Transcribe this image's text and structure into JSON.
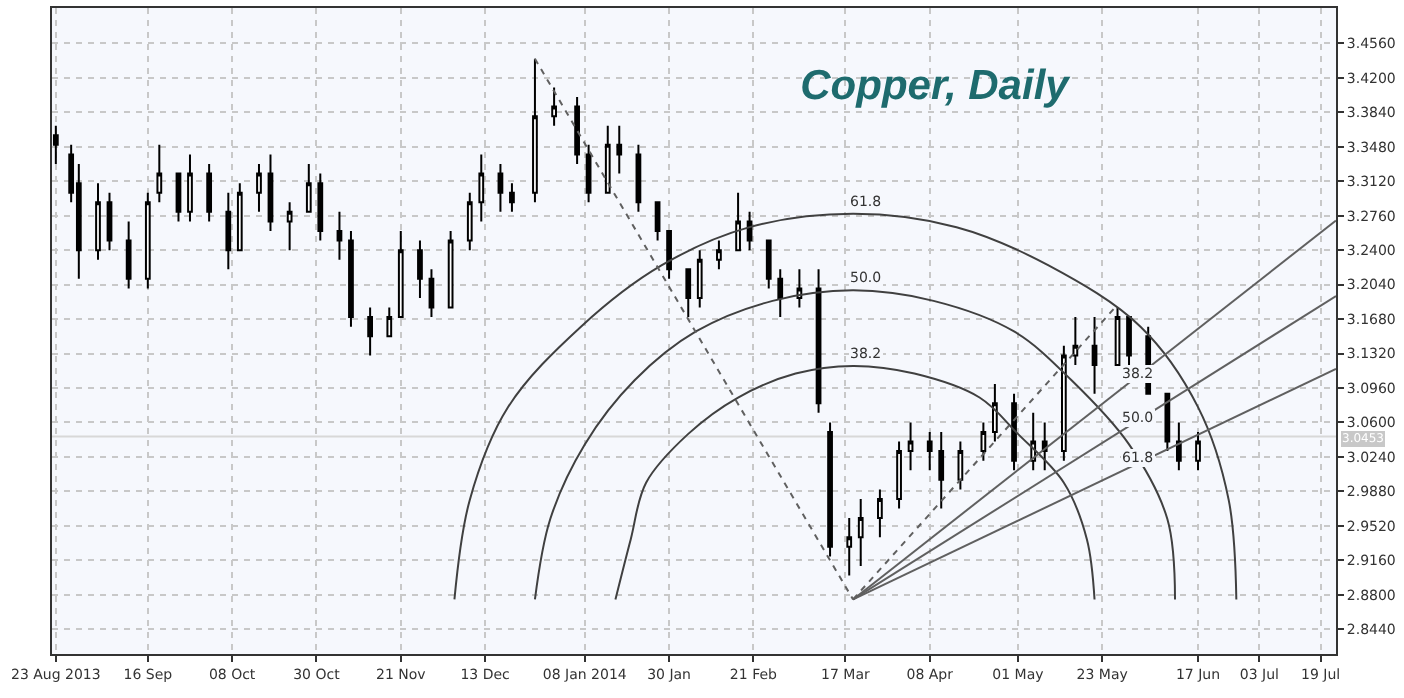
{
  "chart_data": {
    "type": "candlestick",
    "title": "Copper, Daily",
    "xlim": [
      "2013-08-22",
      "2014-07-23"
    ],
    "ylim": [
      2.818,
      3.493
    ],
    "xticks": [
      {
        "value": "2013-08-23",
        "label": "23 Aug 2013"
      },
      {
        "value": "2013-09-16",
        "label": "16 Sep"
      },
      {
        "value": "2013-10-08",
        "label": "08 Oct"
      },
      {
        "value": "2013-10-30",
        "label": "30 Oct"
      },
      {
        "value": "2013-11-21",
        "label": "21 Nov"
      },
      {
        "value": "2013-12-13",
        "label": "13 Dec"
      },
      {
        "value": "2014-01-08",
        "label": "08 Jan 2014"
      },
      {
        "value": "2014-01-30",
        "label": "30 Jan"
      },
      {
        "value": "2014-02-21",
        "label": "21 Feb"
      },
      {
        "value": "2014-03-17",
        "label": "17 Mar"
      },
      {
        "value": "2014-04-08",
        "label": "08 Apr"
      },
      {
        "value": "2014-05-01",
        "label": "01 May"
      },
      {
        "value": "2014-05-23",
        "label": "23 May"
      },
      {
        "value": "2014-06-17",
        "label": "17 Jun"
      },
      {
        "value": "2014-07-03",
        "label": "03 Jul"
      },
      {
        "value": "2014-07-19",
        "label": "19 Jul"
      }
    ],
    "yticks": [
      {
        "value": 3.456,
        "label": "3.4560"
      },
      {
        "value": 3.42,
        "label": "3.4200"
      },
      {
        "value": 3.384,
        "label": "3.3840"
      },
      {
        "value": 3.348,
        "label": "3.3480"
      },
      {
        "value": 3.312,
        "label": "3.3120"
      },
      {
        "value": 3.276,
        "label": "3.2760"
      },
      {
        "value": 3.24,
        "label": "3.2400"
      },
      {
        "value": 3.204,
        "label": "3.2040"
      },
      {
        "value": 3.168,
        "label": "3.1680"
      },
      {
        "value": 3.132,
        "label": "3.1320"
      },
      {
        "value": 3.096,
        "label": "3.0960"
      },
      {
        "value": 3.06,
        "label": "3.0600"
      },
      {
        "value": 3.024,
        "label": "3.0240"
      },
      {
        "value": 2.988,
        "label": "2.9880"
      },
      {
        "value": 2.952,
        "label": "2.9520"
      },
      {
        "value": 2.916,
        "label": "2.9160"
      },
      {
        "value": 2.88,
        "label": "2.8800"
      },
      {
        "value": 2.844,
        "label": "2.8440"
      }
    ],
    "grid": true,
    "series": [
      {
        "color": "#000000",
        "x": [
          "2013-08-23",
          "2013-08-27",
          "2013-08-29",
          "2013-09-03",
          "2013-09-06",
          "2013-09-11",
          "2013-09-16",
          "2013-09-19",
          "2013-09-24",
          "2013-09-27",
          "2013-10-02",
          "2013-10-07",
          "2013-10-10",
          "2013-10-15",
          "2013-10-18",
          "2013-10-23",
          "2013-10-28",
          "2013-10-31",
          "2013-11-05",
          "2013-11-08",
          "2013-11-13",
          "2013-11-18",
          "2013-11-21",
          "2013-11-26",
          "2013-11-29",
          "2013-12-04",
          "2013-12-09",
          "2013-12-12",
          "2013-12-17",
          "2013-12-20",
          "2013-12-26",
          "2013-12-31",
          "2014-01-06",
          "2014-01-09",
          "2014-01-14",
          "2014-01-17",
          "2014-01-22",
          "2014-01-27",
          "2014-01-30",
          "2014-02-04",
          "2014-02-07",
          "2014-02-12",
          "2014-02-17",
          "2014-02-20",
          "2014-02-25",
          "2014-02-28",
          "2014-03-05",
          "2014-03-10",
          "2014-03-13",
          "2014-03-18",
          "2014-03-21",
          "2014-03-26",
          "2014-03-31",
          "2014-04-03",
          "2014-04-08",
          "2014-04-11",
          "2014-04-16",
          "2014-04-22",
          "2014-04-25",
          "2014-04-30",
          "2014-05-05",
          "2014-05-08",
          "2014-05-13",
          "2014-05-16",
          "2014-05-21",
          "2014-05-27",
          "2014-05-30",
          "2014-06-04",
          "2014-06-09",
          "2014-06-12",
          "2014-06-17"
        ],
        "ohlc": [
          [
            3.36,
            3.37,
            3.33,
            3.35
          ],
          [
            3.34,
            3.35,
            3.29,
            3.3
          ],
          [
            3.31,
            3.33,
            3.21,
            3.24
          ],
          [
            3.24,
            3.31,
            3.23,
            3.29
          ],
          [
            3.29,
            3.3,
            3.24,
            3.25
          ],
          [
            3.25,
            3.27,
            3.2,
            3.21
          ],
          [
            3.21,
            3.3,
            3.2,
            3.29
          ],
          [
            3.3,
            3.35,
            3.29,
            3.32
          ],
          [
            3.32,
            3.32,
            3.27,
            3.28
          ],
          [
            3.28,
            3.34,
            3.27,
            3.32
          ],
          [
            3.32,
            3.33,
            3.27,
            3.28
          ],
          [
            3.28,
            3.3,
            3.22,
            3.24
          ],
          [
            3.24,
            3.31,
            3.24,
            3.3
          ],
          [
            3.3,
            3.33,
            3.28,
            3.32
          ],
          [
            3.32,
            3.34,
            3.26,
            3.27
          ],
          [
            3.27,
            3.29,
            3.24,
            3.28
          ],
          [
            3.28,
            3.33,
            3.28,
            3.31
          ],
          [
            3.31,
            3.32,
            3.25,
            3.26
          ],
          [
            3.26,
            3.28,
            3.23,
            3.25
          ],
          [
            3.25,
            3.26,
            3.16,
            3.17
          ],
          [
            3.17,
            3.18,
            3.13,
            3.15
          ],
          [
            3.15,
            3.18,
            3.15,
            3.17
          ],
          [
            3.17,
            3.26,
            3.17,
            3.24
          ],
          [
            3.24,
            3.25,
            3.19,
            3.21
          ],
          [
            3.21,
            3.22,
            3.17,
            3.18
          ],
          [
            3.18,
            3.26,
            3.18,
            3.25
          ],
          [
            3.25,
            3.3,
            3.24,
            3.29
          ],
          [
            3.29,
            3.34,
            3.27,
            3.32
          ],
          [
            3.32,
            3.33,
            3.28,
            3.3
          ],
          [
            3.3,
            3.31,
            3.28,
            3.29
          ],
          [
            3.3,
            3.44,
            3.29,
            3.38
          ],
          [
            3.38,
            3.41,
            3.37,
            3.39
          ],
          [
            3.39,
            3.4,
            3.33,
            3.34
          ],
          [
            3.34,
            3.35,
            3.29,
            3.3
          ],
          [
            3.3,
            3.37,
            3.3,
            3.35
          ],
          [
            3.35,
            3.37,
            3.32,
            3.34
          ],
          [
            3.34,
            3.35,
            3.28,
            3.29
          ],
          [
            3.29,
            3.29,
            3.25,
            3.26
          ],
          [
            3.26,
            3.26,
            3.21,
            3.22
          ],
          [
            3.22,
            3.22,
            3.17,
            3.19
          ],
          [
            3.19,
            3.24,
            3.18,
            3.23
          ],
          [
            3.23,
            3.25,
            3.22,
            3.24
          ],
          [
            3.24,
            3.3,
            3.24,
            3.27
          ],
          [
            3.27,
            3.28,
            3.24,
            3.25
          ],
          [
            3.25,
            3.25,
            3.2,
            3.21
          ],
          [
            3.21,
            3.22,
            3.17,
            3.19
          ],
          [
            3.19,
            3.22,
            3.18,
            3.2
          ],
          [
            3.2,
            3.22,
            3.07,
            3.08
          ],
          [
            3.05,
            3.06,
            2.92,
            2.93
          ],
          [
            2.93,
            2.96,
            2.9,
            2.94
          ],
          [
            2.94,
            2.98,
            2.91,
            2.96
          ],
          [
            2.96,
            2.99,
            2.94,
            2.98
          ],
          [
            2.98,
            3.04,
            2.97,
            3.03
          ],
          [
            3.03,
            3.06,
            3.01,
            3.04
          ],
          [
            3.04,
            3.05,
            3.01,
            3.03
          ],
          [
            3.03,
            3.05,
            2.97,
            3.0
          ],
          [
            3.0,
            3.04,
            2.99,
            3.03
          ],
          [
            3.03,
            3.06,
            3.02,
            3.05
          ],
          [
            3.05,
            3.1,
            3.04,
            3.08
          ],
          [
            3.08,
            3.09,
            3.01,
            3.02
          ],
          [
            3.02,
            3.07,
            3.01,
            3.04
          ],
          [
            3.04,
            3.06,
            3.01,
            3.03
          ],
          [
            3.03,
            3.14,
            3.02,
            3.13
          ],
          [
            3.13,
            3.17,
            3.12,
            3.14
          ],
          [
            3.14,
            3.17,
            3.09,
            3.12
          ],
          [
            3.12,
            3.18,
            3.12,
            3.17
          ],
          [
            3.17,
            3.17,
            3.12,
            3.13
          ],
          [
            3.15,
            3.16,
            3.09,
            3.09
          ],
          [
            3.09,
            3.09,
            3.03,
            3.04
          ],
          [
            3.04,
            3.06,
            3.01,
            3.02
          ],
          [
            3.02,
            3.05,
            3.01,
            3.04
          ]
        ]
      },
      {
        "type": "line",
        "color": "#404040",
        "x": [
          "2014-06-27",
          "2014-06-25",
          "2014-06-17",
          "2014-06-02",
          "2014-05-09",
          "2014-04-15",
          "2014-03-19",
          "2014-02-20",
          "2014-01-28",
          "2014-01-07",
          "2013-12-19",
          "2013-12-09",
          "2013-12-05"
        ],
        "values": [
          2.875,
          2.979,
          3.076,
          3.16,
          3.224,
          3.264,
          3.278,
          3.264,
          3.224,
          3.16,
          3.076,
          2.979,
          2.875
        ]
      },
      {
        "type": "line",
        "color": "#404040",
        "x": [
          "2014-06-11",
          "2014-06-09",
          "2014-05-30",
          "2014-05-15",
          "2014-04-30",
          "2014-04-09",
          "2014-03-19",
          "2014-02-26",
          "2014-02-06",
          "2014-01-21",
          "2014-01-08",
          "2013-12-30",
          "2013-12-26"
        ],
        "values": [
          2.875,
          2.959,
          3.037,
          3.104,
          3.155,
          3.187,
          3.198,
          3.187,
          3.155,
          3.104,
          3.037,
          2.959,
          2.875
        ]
      },
      {
        "type": "line",
        "color": "#404040",
        "x": [
          "2014-05-21",
          "2014-05-19",
          "2014-05-13",
          "2014-05-01",
          "2014-04-21",
          "2014-04-04",
          "2014-03-19",
          "2014-03-04",
          "2014-02-17",
          "2014-02-04",
          "2014-01-24",
          "2014-01-20",
          "2014-01-16"
        ],
        "values": [
          2.875,
          2.938,
          2.997,
          3.048,
          3.086,
          3.111,
          3.119,
          3.111,
          3.086,
          3.048,
          2.997,
          2.938,
          2.875
        ]
      },
      {
        "type": "line",
        "color": "#606060",
        "x": [
          "2014-03-19",
          "2014-07-23"
        ],
        "values": [
          2.875,
          3.271
        ]
      },
      {
        "type": "line",
        "color": "#606060",
        "x": [
          "2014-03-19",
          "2014-07-23"
        ],
        "values": [
          2.875,
          3.192
        ]
      },
      {
        "type": "line",
        "color": "#606060",
        "x": [
          "2014-03-19",
          "2014-07-23"
        ],
        "values": [
          2.875,
          3.116
        ]
      },
      {
        "type": "line",
        "color": "#606060",
        "line_style": "dotted",
        "x": [
          "2013-12-26",
          "2014-03-19"
        ],
        "values": [
          3.44,
          2.875
        ]
      },
      {
        "type": "line",
        "color": "#606060",
        "line_style": "dotted",
        "x": [
          "2014-03-19",
          "2014-05-27"
        ],
        "values": [
          2.875,
          3.183
        ]
      }
    ],
    "ref_lines": [
      {
        "axis": "y",
        "value": 3.0453,
        "label": "3.0453",
        "color": "#d8d8d8"
      }
    ],
    "annotations": [
      {
        "text": "61.8",
        "x": "2014-03-19",
        "y": 3.278
      },
      {
        "text": "50.0",
        "x": "2014-03-19",
        "y": 3.198
      },
      {
        "text": "38.2",
        "x": "2014-03-19",
        "y": 3.119
      },
      {
        "text": "38.2",
        "x": "2014-05-29",
        "y": 3.098
      },
      {
        "text": "50.0",
        "x": "2014-05-29",
        "y": 3.053
      },
      {
        "text": "61.8",
        "x": "2014-05-29",
        "y": 3.011
      }
    ]
  }
}
